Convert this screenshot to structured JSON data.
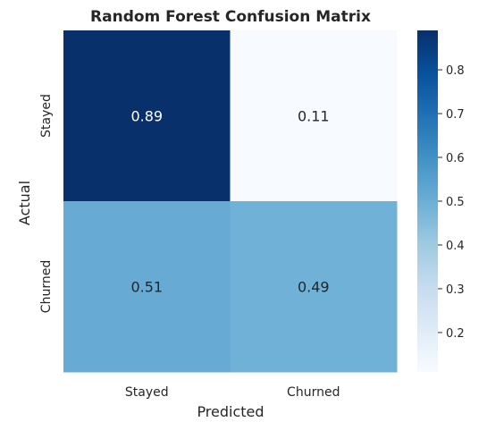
{
  "chart_data": {
    "type": "heatmap",
    "title": "Random Forest Confusion Matrix",
    "xlabel": "Predicted",
    "ylabel": "Actual",
    "x_categories": [
      "Stayed",
      "Churned"
    ],
    "y_categories": [
      "Stayed",
      "Churned"
    ],
    "values": [
      [
        0.89,
        0.11
      ],
      [
        0.51,
        0.49
      ]
    ],
    "annotations": [
      [
        "0.89",
        "0.11"
      ],
      [
        "0.51",
        "0.49"
      ]
    ],
    "colormap": "Blues",
    "colorbar": {
      "range": [
        0.11,
        0.89
      ],
      "ticks": [
        0.2,
        0.3,
        0.4,
        0.5,
        0.6,
        0.7,
        0.8
      ],
      "tick_labels": [
        "0.2",
        "0.3",
        "0.4",
        "0.5",
        "0.6",
        "0.7",
        "0.8"
      ]
    }
  }
}
